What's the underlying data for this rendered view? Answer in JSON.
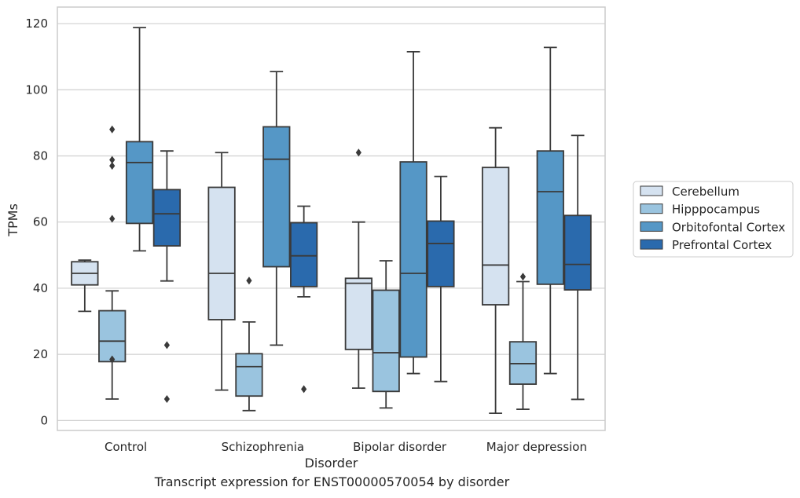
{
  "chart_data": {
    "type": "box",
    "xlabel": "Disorder",
    "ylabel": "TPMs",
    "caption": "Transcript expression for ENST00000570054 by disorder",
    "ylim": [
      -3,
      125
    ],
    "yticks": [
      0,
      20,
      40,
      60,
      80,
      100,
      120
    ],
    "grid": true,
    "legend_position": "right",
    "categories": [
      "Control",
      "Schizophrenia",
      "Bipolar disorder",
      "Major depression"
    ],
    "series": [
      {
        "name": "Cerebellum",
        "color": "#d5e2f0",
        "boxes": [
          {
            "whislo": 33,
            "q1": 41,
            "med": 44.5,
            "q3": 48,
            "whishi": 48.5,
            "fliers": []
          },
          {
            "whislo": 9.2,
            "q1": 30.5,
            "med": 44.5,
            "q3": 70.5,
            "whishi": 81,
            "fliers": []
          },
          {
            "whislo": 9.8,
            "q1": 21.5,
            "med": 41.5,
            "q3": 43,
            "whishi": 60,
            "fliers": [
              81
            ]
          },
          {
            "whislo": 2.2,
            "q1": 35,
            "med": 47,
            "q3": 76.5,
            "whishi": 88.5,
            "fliers": []
          }
        ]
      },
      {
        "name": "Hipppocampus",
        "color": "#9ac4df",
        "boxes": [
          {
            "whislo": 6.5,
            "q1": 17.8,
            "med": 24,
            "q3": 33.2,
            "whishi": 39.2,
            "fliers": [
              18.5,
              61,
              77,
              78.8,
              88
            ]
          },
          {
            "whislo": 3,
            "q1": 7.4,
            "med": 16.3,
            "q3": 20.2,
            "whishi": 29.8,
            "fliers": [
              42.3
            ]
          },
          {
            "whislo": 3.8,
            "q1": 8.8,
            "med": 20.5,
            "q3": 39.4,
            "whishi": 48.3,
            "fliers": []
          },
          {
            "whislo": 3.4,
            "q1": 11,
            "med": 17.2,
            "q3": 23.8,
            "whishi": 42,
            "fliers": [
              43.5
            ]
          }
        ]
      },
      {
        "name": "Orbitofontal Cortex",
        "color": "#5597c6",
        "boxes": [
          {
            "whislo": 51.3,
            "q1": 59.6,
            "med": 78,
            "q3": 84.3,
            "whishi": 118.8,
            "fliers": []
          },
          {
            "whislo": 22.8,
            "q1": 46.5,
            "med": 79,
            "q3": 88.8,
            "whishi": 105.5,
            "fliers": []
          },
          {
            "whislo": 14.2,
            "q1": 19.2,
            "med": 44.5,
            "q3": 78.2,
            "whishi": 111.5,
            "fliers": []
          },
          {
            "whislo": 14.2,
            "q1": 41.2,
            "med": 69.2,
            "q3": 81.5,
            "whishi": 112.8,
            "fliers": []
          }
        ]
      },
      {
        "name": "Prefrontal Cortex",
        "color": "#2a6aad",
        "boxes": [
          {
            "whislo": 42.2,
            "q1": 52.8,
            "med": 62.5,
            "q3": 69.8,
            "whishi": 81.5,
            "fliers": [
              6.5,
              22.8
            ]
          },
          {
            "whislo": 37.4,
            "q1": 40.5,
            "med": 49.8,
            "q3": 59.8,
            "whishi": 64.8,
            "fliers": [
              9.5
            ]
          },
          {
            "whislo": 11.8,
            "q1": 40.5,
            "med": 53.5,
            "q3": 60.3,
            "whishi": 73.8,
            "fliers": []
          },
          {
            "whislo": 6.4,
            "q1": 39.5,
            "med": 47.2,
            "q3": 62,
            "whishi": 86.2,
            "fliers": []
          }
        ]
      }
    ]
  }
}
